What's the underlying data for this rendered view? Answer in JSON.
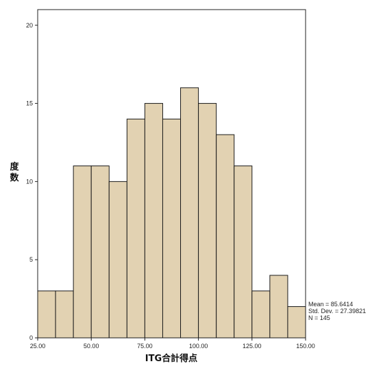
{
  "chart_data": {
    "type": "bar",
    "subtype": "histogram",
    "bins": [
      {
        "start": 25.0,
        "end": 33.3333,
        "count": 3
      },
      {
        "start": 33.3333,
        "end": 41.6667,
        "count": 3
      },
      {
        "start": 41.6667,
        "end": 50.0,
        "count": 11
      },
      {
        "start": 50.0,
        "end": 58.3333,
        "count": 11
      },
      {
        "start": 58.3333,
        "end": 66.6667,
        "count": 10
      },
      {
        "start": 66.6667,
        "end": 75.0,
        "count": 14
      },
      {
        "start": 75.0,
        "end": 83.3333,
        "count": 15
      },
      {
        "start": 83.3333,
        "end": 91.6667,
        "count": 14
      },
      {
        "start": 91.6667,
        "end": 100.0,
        "count": 16
      },
      {
        "start": 100.0,
        "end": 108.3333,
        "count": 15
      },
      {
        "start": 108.3333,
        "end": 116.6667,
        "count": 13
      },
      {
        "start": 116.6667,
        "end": 125.0,
        "count": 11
      },
      {
        "start": 125.0,
        "end": 133.3333,
        "count": 3
      },
      {
        "start": 133.3333,
        "end": 141.6667,
        "count": 4
      },
      {
        "start": 141.6667,
        "end": 150.0,
        "count": 2
      }
    ],
    "xlabel": "ITG合計得点",
    "ylabel": "度数",
    "xlim": [
      25,
      150
    ],
    "ylim": [
      0,
      21
    ],
    "x_ticks": [
      "25.00",
      "50.00",
      "75.00",
      "100.00",
      "125.00",
      "150.00"
    ],
    "x_tick_values": [
      25,
      50,
      75,
      100,
      125,
      150
    ],
    "y_ticks": [
      "0",
      "5",
      "10",
      "15",
      "20"
    ],
    "y_tick_values": [
      0,
      5,
      10,
      15,
      20
    ],
    "stats": [
      "Mean = 85.6414",
      "Std. Dev. = 27.39821",
      "N = 145"
    ],
    "bar_color": "#e2d2b2",
    "bar_edge_color": "#1a1a1a",
    "grid": false
  }
}
